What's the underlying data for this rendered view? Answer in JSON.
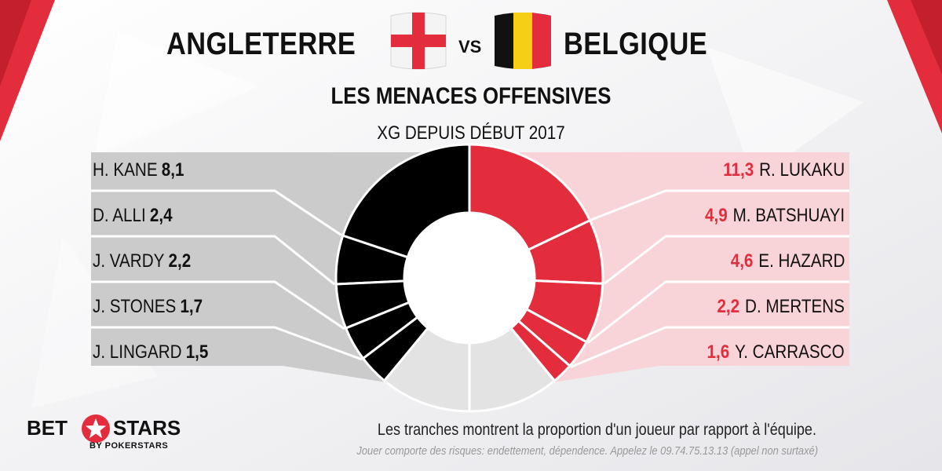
{
  "header": {
    "team_left": "ANGLETERRE",
    "vs": "VS",
    "team_right": "BELGIQUE",
    "subtitle": "LES MENACES OFFENSIVES",
    "subsubtitle": "XG DEPUIS DÉBUT 2017"
  },
  "colors": {
    "england": "#000000",
    "belgium": "#e32d3c",
    "england_panel": "#cbcbcb",
    "belgium_panel": "#f8d3d7",
    "remainder": "#e3e3e3"
  },
  "chart_data": {
    "type": "pie",
    "subtype": "half-donut",
    "title": "LES MENACES OFFENSIVES",
    "subtitle": "XG DEPUIS DÉBUT 2017",
    "series": [
      {
        "name": "ANGLETERRE",
        "players": [
          {
            "name": "H. KANE",
            "value_label": "8,1",
            "value": 8.1
          },
          {
            "name": "D. ALLI",
            "value_label": "2,4",
            "value": 2.4
          },
          {
            "name": "J. VARDY",
            "value_label": "2,2",
            "value": 2.2
          },
          {
            "name": "J. STONES",
            "value_label": "1,7",
            "value": 1.7
          },
          {
            "name": "J. LINGARD",
            "value_label": "1,5",
            "value": 1.5
          }
        ]
      },
      {
        "name": "BELGIQUE",
        "players": [
          {
            "name": "R. LUKAKU",
            "value_label": "11,3",
            "value": 11.3
          },
          {
            "name": "M. BATSHUAYI",
            "value_label": "4,9",
            "value": 4.9
          },
          {
            "name": "E. HAZARD",
            "value_label": "4,6",
            "value": 4.6
          },
          {
            "name": "D. MERTENS",
            "value_label": "2,2",
            "value": 2.2
          },
          {
            "name": "Y. CARRASCO",
            "value_label": "1,6",
            "value": 1.6
          }
        ]
      }
    ],
    "remainder_share": 0.22
  },
  "footer": {
    "note": "Les tranches montrent la proportion d'un joueur par rapport à l'équipe.",
    "disclaimer": "Jouer comporte des risques: endettement, dépendence. Appelez le 09.74.75.13.13 (appel non surtaxé)",
    "logo_bet": "BET",
    "logo_stars": "STARS",
    "logo_sub": "BY POKERSTARS"
  }
}
